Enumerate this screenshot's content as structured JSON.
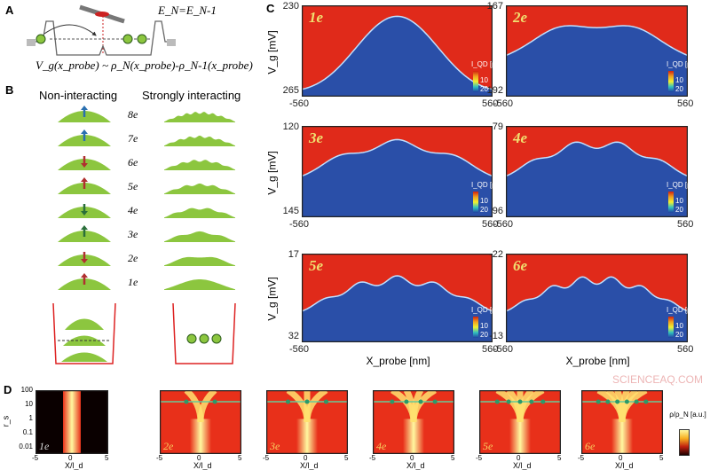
{
  "panel_a": {
    "label": "A",
    "energy_condition": "E_N=E_N-1",
    "formula": "V_g(x_probe) ~ ρ_N(x_probe)-ρ_N-1(x_probe)"
  },
  "panel_b": {
    "label": "B",
    "left_heading": "Non-interacting",
    "right_heading": "Strongly interacting",
    "rows": [
      "8e",
      "7e",
      "6e",
      "5e",
      "4e",
      "3e",
      "2e",
      "1e"
    ],
    "arrow_colors": [
      "#2a6fb0",
      "#2a6fb0",
      "#b03030",
      "#b03030",
      "#2a6f3a",
      "#2a6f3a",
      "#b03030",
      "#b03030"
    ],
    "bump_color": "#8cc63f"
  },
  "panel_c": {
    "label": "C",
    "ylabel": "V_g [mV]",
    "xlabel": "X_probe [nm]",
    "x_ticks": [
      "-560",
      "560"
    ],
    "colorbar_title": "I_QD [pA]",
    "colorbar_ticks": [
      "10",
      "20"
    ],
    "panels": [
      {
        "label": "1e",
        "y_top": "230",
        "y_bottom": "265"
      },
      {
        "label": "2e",
        "y_top": "167",
        "y_bottom": "192"
      },
      {
        "label": "3e",
        "y_top": "120",
        "y_bottom": "145"
      },
      {
        "label": "4e",
        "y_top": "79",
        "y_bottom": "96"
      },
      {
        "label": "5e",
        "y_top": "17",
        "y_bottom": "32"
      },
      {
        "label": "6e",
        "y_top": "-22",
        "y_bottom": "-13"
      }
    ],
    "colors": {
      "high": "#e02a1a",
      "low": "#2a4fa8"
    }
  },
  "panel_d": {
    "label": "D",
    "y_ticks": [
      "100",
      "10",
      "1",
      "0.1",
      "0.01"
    ],
    "ylabel": "r_s",
    "x_ticks": [
      "-5",
      "0",
      "5"
    ],
    "xlabel": "X/l_d",
    "panels": [
      "1e",
      "2e",
      "3e",
      "4e",
      "5e",
      "6e"
    ],
    "colorbar_title": "ρ/ρ_N [a.u.]"
  },
  "watermark": "SCIENCEAQ.COM"
}
